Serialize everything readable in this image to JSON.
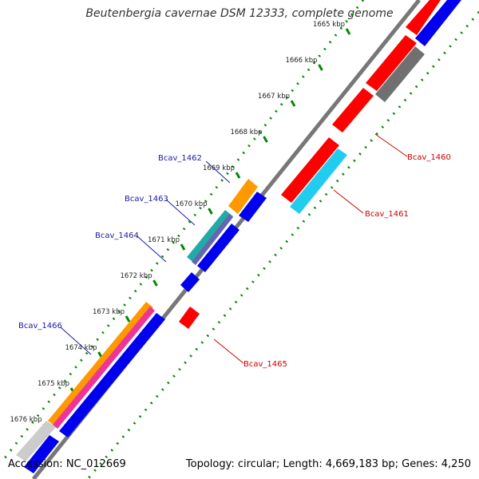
{
  "title": "Beutenbergia cavernae DSM 12333, complete genome",
  "footer": {
    "accession": "Accession: NC_012669",
    "summary": "Topology: circular; Length: 4,669,183 bp; Genes: 4,250"
  },
  "ticks": [
    "1665 kbp",
    "1666 kbp",
    "1667 kbp",
    "1668 kbp",
    "1669 kbp",
    "1670 kbp",
    "1671 kbp",
    "1672 kbp",
    "1673 kbp",
    "1674 kbp",
    "1675 kbp",
    "1676 kbp"
  ],
  "gene_labels": [
    "Bcav_1460",
    "Bcav_1461",
    "Bcav_1462",
    "Bcav_1463",
    "Bcav_1464",
    "Bcav_1465",
    "Bcav_1466"
  ],
  "colors": {
    "label_left": "#1a1aaa",
    "label_right": "#cc0000",
    "red": "#ff0000",
    "blue": "#0000ee",
    "grey": "#707070",
    "cyan": "#22ccee",
    "orange": "#ff9900",
    "teal": "#22aaaa",
    "magenta": "#ee3399",
    "light_grey": "#cccccc",
    "tick_green": "#008800",
    "backbone": "#888888"
  }
}
